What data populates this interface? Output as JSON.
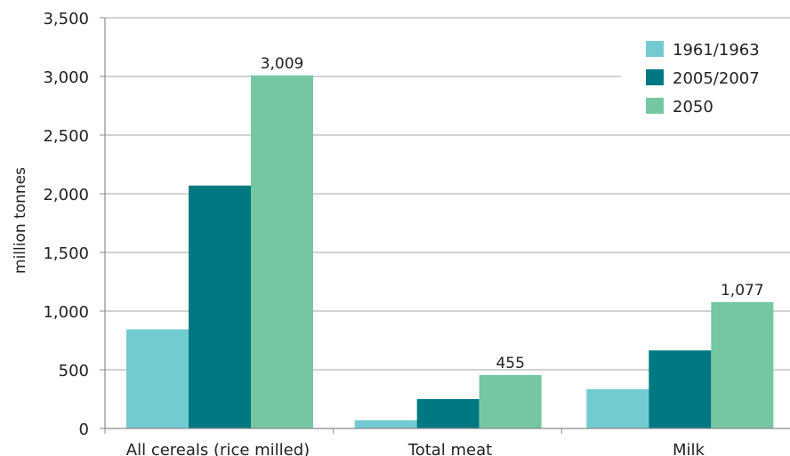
{
  "chart_data": {
    "type": "bar",
    "categories": [
      "All cereals (rice milled)",
      "Total meat",
      "Milk"
    ],
    "series": [
      {
        "name": "1961/1963",
        "values": [
          845,
          70,
          335
        ],
        "color": "#73cbd2"
      },
      {
        "name": "2005/2007",
        "values": [
          2070,
          250,
          665
        ],
        "color": "#007882"
      },
      {
        "name": "2050",
        "values": [
          3009,
          455,
          1077
        ],
        "color": "#74c7a2"
      }
    ],
    "data_labels": [
      {
        "category_index": 0,
        "series_index": 2,
        "text": "3,009"
      },
      {
        "category_index": 1,
        "series_index": 2,
        "text": "455"
      },
      {
        "category_index": 2,
        "series_index": 2,
        "text": "1,077"
      }
    ],
    "title": "",
    "xlabel": "",
    "ylabel": "million tonnes",
    "ylim": [
      0,
      3500
    ],
    "yticks": [
      0,
      500,
      1000,
      1500,
      2000,
      2500,
      3000,
      3500
    ],
    "ytick_labels": [
      "0",
      "500",
      "1,000",
      "1,500",
      "2,000",
      "2,500",
      "3,000",
      "3,500"
    ],
    "grid": "horizontal",
    "legend_position": "top-right"
  }
}
